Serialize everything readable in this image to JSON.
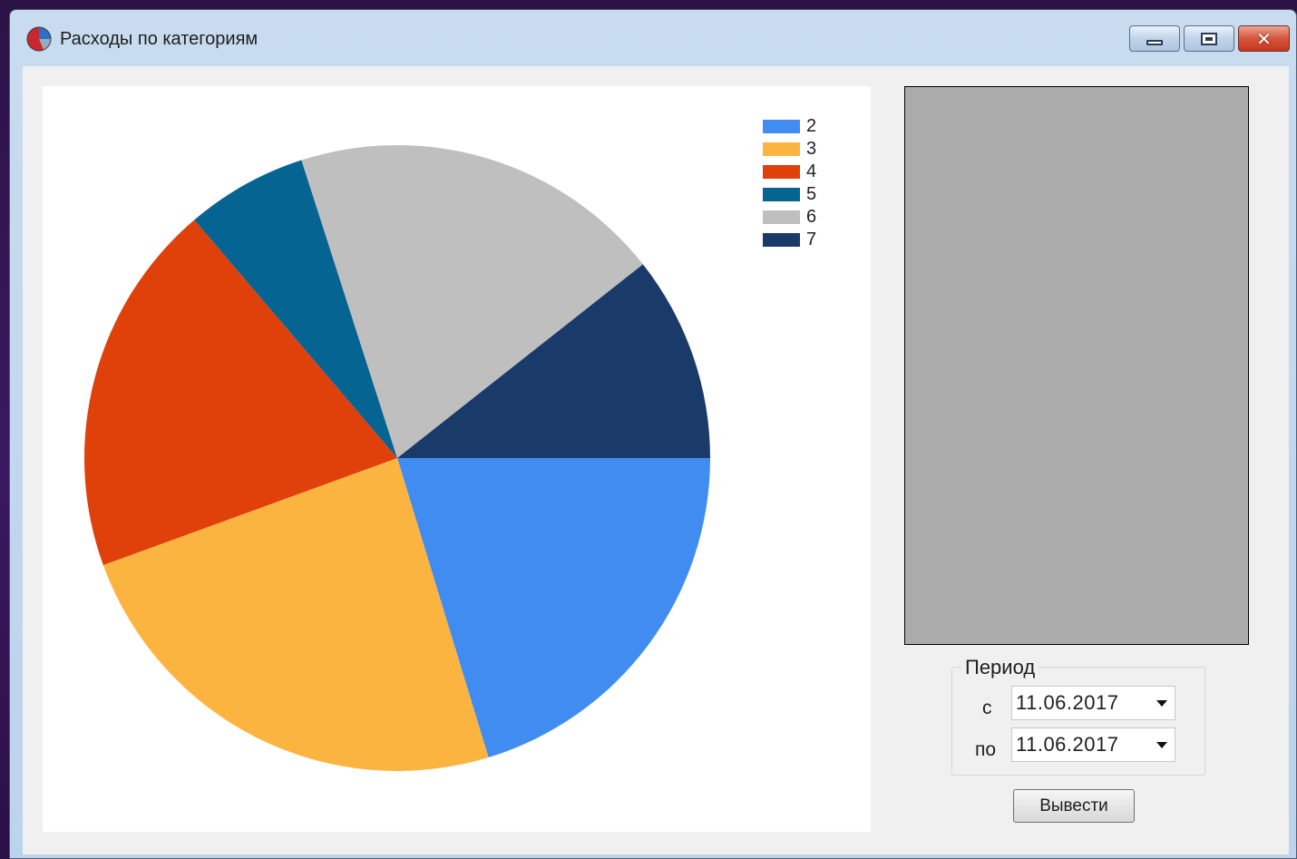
{
  "window": {
    "title": "Расходы по категориям",
    "icon": "pie-chart-app-icon",
    "controls": {
      "minimize_icon": "minimize-icon",
      "maximize_icon": "restore-icon",
      "close_icon": "close-icon",
      "close_glyph": "✕"
    }
  },
  "chart_data": {
    "type": "pie",
    "categories": [
      "2",
      "3",
      "4",
      "5",
      "6",
      "7"
    ],
    "values": [
      21,
      25,
      20,
      6.5,
      20,
      11
    ],
    "colors": [
      "#418cf0",
      "#fcb441",
      "#e0400a",
      "#056492",
      "#bfbfbf",
      "#1a3b69"
    ],
    "start_angle": "3 o'clock, clockwise",
    "legend_position": "top-right"
  },
  "preview": {
    "background": "#ababab"
  },
  "period": {
    "group_label": "Период",
    "from_label": "с",
    "to_label": "по",
    "from_value": "11.06.2017",
    "to_value": "11.06.2017"
  },
  "actions": {
    "show_label": "Вывести"
  }
}
